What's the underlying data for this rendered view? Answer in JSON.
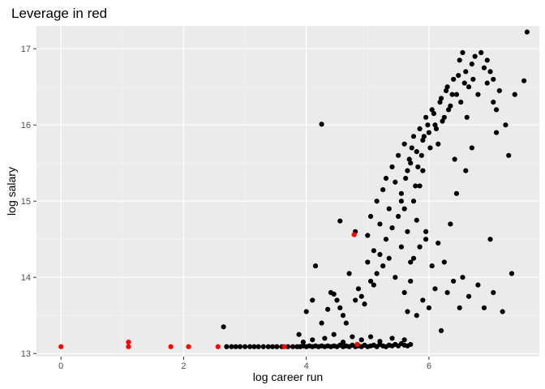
{
  "chart_data": {
    "type": "scatter",
    "title": "Leverage in red",
    "xlabel": "log career run",
    "ylabel": "log salary",
    "xlim": [
      -0.4,
      7.8
    ],
    "ylim": [
      12.96,
      17.3
    ],
    "x_ticks": [
      0,
      2,
      4,
      6
    ],
    "y_ticks": [
      13,
      14,
      15,
      16,
      17
    ],
    "x_tick_labels": [
      "0",
      "2",
      "4",
      "6"
    ],
    "y_tick_labels": [
      "13",
      "14",
      "15",
      "16",
      "17"
    ],
    "grid": true,
    "legend": "none",
    "colors": {
      "panel_background": "#ebebeb",
      "grid_major": "#ffffff",
      "grid_minor": "#f5f5f5",
      "normal_point": "#000000",
      "high_leverage_point": "#ff0000"
    },
    "series": [
      {
        "color": "#000000",
        "points": [
          [
            2.65,
            13.35
          ],
          [
            2.7,
            13.09
          ],
          [
            2.78,
            13.09
          ],
          [
            2.85,
            13.09
          ],
          [
            2.92,
            13.09
          ],
          [
            3.0,
            13.09
          ],
          [
            3.08,
            13.09
          ],
          [
            3.15,
            13.09
          ],
          [
            3.22,
            13.09
          ],
          [
            3.3,
            13.09
          ],
          [
            3.38,
            13.09
          ],
          [
            3.45,
            13.09
          ],
          [
            3.52,
            13.09
          ],
          [
            3.6,
            13.09
          ],
          [
            3.7,
            13.09
          ],
          [
            3.78,
            13.09
          ],
          [
            3.85,
            13.09
          ],
          [
            3.9,
            13.09
          ],
          [
            3.95,
            13.1
          ],
          [
            4.0,
            13.09
          ],
          [
            4.05,
            13.1
          ],
          [
            4.1,
            13.09
          ],
          [
            4.15,
            13.1
          ],
          [
            4.2,
            13.09
          ],
          [
            4.25,
            13.1
          ],
          [
            4.3,
            13.09
          ],
          [
            4.35,
            13.1
          ],
          [
            4.4,
            13.09
          ],
          [
            4.45,
            13.1
          ],
          [
            4.5,
            13.09
          ],
          [
            4.55,
            13.11
          ],
          [
            4.6,
            13.09
          ],
          [
            4.65,
            13.1
          ],
          [
            4.7,
            13.09
          ],
          [
            4.75,
            13.11
          ],
          [
            4.8,
            13.09
          ],
          [
            4.85,
            13.1
          ],
          [
            4.9,
            13.09
          ],
          [
            4.95,
            13.11
          ],
          [
            5.0,
            13.09
          ],
          [
            5.05,
            13.1
          ],
          [
            5.1,
            13.11
          ],
          [
            5.15,
            13.09
          ],
          [
            5.2,
            13.12
          ],
          [
            5.25,
            13.1
          ],
          [
            5.3,
            13.09
          ],
          [
            5.35,
            13.11
          ],
          [
            5.4,
            13.1
          ],
          [
            5.45,
            13.12
          ],
          [
            5.5,
            13.1
          ],
          [
            5.55,
            13.13
          ],
          [
            5.6,
            13.11
          ],
          [
            5.65,
            13.1
          ],
          [
            5.7,
            13.12
          ],
          [
            3.95,
            13.15
          ],
          [
            4.1,
            13.18
          ],
          [
            4.3,
            13.2
          ],
          [
            4.45,
            13.25
          ],
          [
            4.6,
            13.15
          ],
          [
            4.75,
            13.22
          ],
          [
            4.9,
            13.18
          ],
          [
            5.05,
            13.22
          ],
          [
            5.2,
            13.16
          ],
          [
            5.4,
            13.2
          ],
          [
            5.6,
            13.18
          ],
          [
            3.88,
            13.25
          ],
          [
            4.0,
            13.55
          ],
          [
            4.1,
            13.7
          ],
          [
            4.25,
            13.4
          ],
          [
            4.35,
            13.58
          ],
          [
            4.4,
            13.8
          ],
          [
            4.45,
            13.78
          ],
          [
            4.5,
            13.7
          ],
          [
            4.55,
            13.6
          ],
          [
            4.6,
            13.5
          ],
          [
            4.65,
            13.4
          ],
          [
            4.7,
            14.05
          ],
          [
            4.8,
            13.7
          ],
          [
            4.85,
            13.85
          ],
          [
            4.9,
            13.75
          ],
          [
            4.95,
            13.65
          ],
          [
            5.0,
            14.2
          ],
          [
            5.05,
            13.95
          ],
          [
            5.1,
            13.9
          ],
          [
            5.15,
            14.05
          ],
          [
            5.2,
            14.3
          ],
          [
            5.25,
            14.15
          ],
          [
            5.3,
            14.5
          ],
          [
            5.35,
            14.25
          ],
          [
            5.4,
            14.65
          ],
          [
            5.45,
            14.0
          ],
          [
            5.5,
            14.8
          ],
          [
            5.55,
            14.4
          ],
          [
            5.6,
            14.9
          ],
          [
            5.65,
            14.6
          ],
          [
            5.7,
            14.2
          ],
          [
            5.75,
            15.0
          ],
          [
            5.8,
            14.75
          ],
          [
            5.85,
            15.2
          ],
          [
            5.9,
            15.4
          ],
          [
            5.95,
            14.5
          ],
          [
            5.0,
            14.55
          ],
          [
            5.05,
            14.8
          ],
          [
            5.1,
            14.35
          ],
          [
            5.15,
            15.0
          ],
          [
            5.2,
            14.7
          ],
          [
            5.25,
            15.15
          ],
          [
            5.3,
            15.3
          ],
          [
            5.35,
            14.9
          ],
          [
            5.4,
            15.45
          ],
          [
            5.45,
            15.25
          ],
          [
            5.5,
            15.6
          ],
          [
            5.55,
            15.1
          ],
          [
            5.6,
            15.75
          ],
          [
            5.65,
            15.4
          ],
          [
            5.7,
            15.5
          ],
          [
            5.75,
            15.85
          ],
          [
            5.8,
            15.65
          ],
          [
            5.85,
            15.95
          ],
          [
            5.9,
            15.8
          ],
          [
            5.95,
            16.1
          ],
          [
            6.0,
            15.9
          ],
          [
            6.05,
            16.2
          ],
          [
            6.1,
            16.0
          ],
          [
            6.15,
            15.75
          ],
          [
            6.2,
            16.35
          ],
          [
            6.25,
            16.1
          ],
          [
            6.3,
            16.5
          ],
          [
            6.35,
            16.25
          ],
          [
            6.4,
            16.6
          ],
          [
            6.45,
            16.4
          ],
          [
            6.5,
            16.85
          ],
          [
            6.55,
            16.95
          ],
          [
            6.6,
            16.7
          ],
          [
            6.65,
            16.5
          ],
          [
            6.7,
            16.8
          ],
          [
            6.75,
            16.9
          ],
          [
            5.6,
            13.8
          ],
          [
            5.65,
            13.55
          ],
          [
            5.7,
            13.95
          ],
          [
            5.75,
            14.25
          ],
          [
            5.8,
            13.5
          ],
          [
            5.85,
            14.4
          ],
          [
            5.9,
            13.7
          ],
          [
            5.95,
            14.6
          ],
          [
            6.0,
            13.6
          ],
          [
            6.05,
            14.15
          ],
          [
            6.1,
            13.85
          ],
          [
            6.15,
            14.45
          ],
          [
            6.2,
            13.3
          ],
          [
            6.25,
            14.2
          ],
          [
            6.3,
            13.8
          ],
          [
            6.35,
            14.7
          ],
          [
            6.4,
            13.95
          ],
          [
            6.45,
            15.1
          ],
          [
            6.5,
            13.6
          ],
          [
            6.55,
            14.0
          ],
          [
            6.6,
            15.4
          ],
          [
            6.65,
            13.75
          ],
          [
            6.7,
            15.7
          ],
          [
            6.8,
            13.9
          ],
          [
            6.9,
            13.6
          ],
          [
            7.0,
            14.5
          ],
          [
            7.05,
            13.8
          ],
          [
            7.1,
            15.9
          ],
          [
            7.2,
            13.55
          ],
          [
            7.35,
            14.05
          ],
          [
            7.3,
            15.6
          ],
          [
            5.55,
            15.0
          ],
          [
            5.62,
            15.3
          ],
          [
            5.68,
            15.55
          ],
          [
            5.72,
            15.7
          ],
          [
            5.78,
            15.2
          ],
          [
            5.82,
            15.45
          ],
          [
            5.88,
            15.6
          ],
          [
            5.92,
            15.85
          ],
          [
            5.98,
            16.0
          ],
          [
            6.02,
            15.7
          ],
          [
            6.08,
            16.15
          ],
          [
            6.12,
            15.95
          ],
          [
            6.18,
            16.3
          ],
          [
            6.22,
            16.05
          ],
          [
            6.28,
            16.45
          ],
          [
            6.32,
            16.2
          ],
          [
            6.38,
            16.4
          ],
          [
            6.42,
            15.55
          ],
          [
            6.48,
            16.65
          ],
          [
            6.52,
            16.3
          ],
          [
            6.58,
            16.55
          ],
          [
            6.62,
            16.1
          ],
          [
            6.72,
            16.6
          ],
          [
            6.8,
            16.4
          ],
          [
            6.85,
            16.95
          ],
          [
            6.9,
            16.75
          ],
          [
            6.95,
            16.55
          ],
          [
            7.0,
            16.7
          ],
          [
            7.05,
            16.3
          ],
          [
            7.1,
            16.2
          ],
          [
            7.15,
            16.45
          ],
          [
            7.25,
            16.0
          ],
          [
            7.4,
            16.4
          ],
          [
            7.55,
            16.58
          ],
          [
            7.6,
            17.22
          ],
          [
            6.95,
            16.85
          ],
          [
            7.05,
            16.6
          ],
          [
            4.25,
            16.01
          ],
          [
            4.15,
            14.15
          ],
          [
            4.55,
            14.74
          ],
          [
            4.8,
            14.6
          ]
        ]
      },
      {
        "color": "#ff0000",
        "points": [
          [
            0.0,
            13.09
          ],
          [
            1.1,
            13.09
          ],
          [
            1.1,
            13.15
          ],
          [
            1.79,
            13.09
          ],
          [
            2.08,
            13.09
          ],
          [
            2.56,
            13.09
          ],
          [
            3.64,
            13.09
          ],
          [
            4.83,
            13.12
          ],
          [
            4.78,
            14.56
          ]
        ]
      }
    ]
  }
}
